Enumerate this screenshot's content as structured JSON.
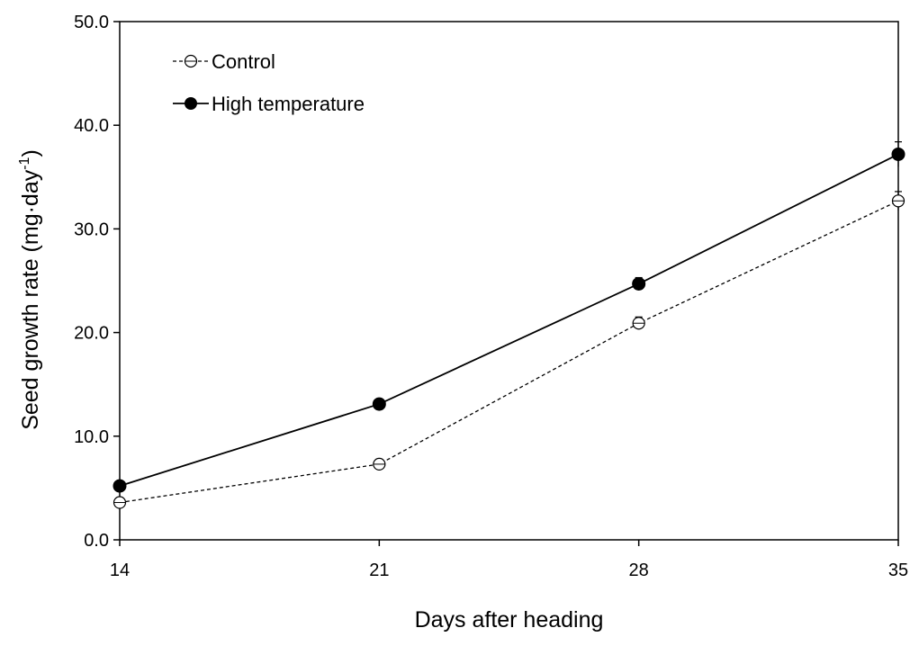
{
  "chart_data": {
    "type": "line",
    "xlabel": "Days after heading",
    "ylabel": {
      "main": "Seed growth rate (mg·day",
      "sup": "-1",
      "close": ")"
    },
    "x": [
      14,
      21,
      28,
      35
    ],
    "x_tick_labels": [
      "14",
      "21",
      "28",
      "35"
    ],
    "xlim": [
      14,
      35
    ],
    "ylim": [
      0,
      50
    ],
    "y_ticks": [
      0,
      10,
      20,
      30,
      40,
      50
    ],
    "y_tick_labels": [
      "0.0",
      "10.0",
      "20.0",
      "30.0",
      "40.0",
      "50.0"
    ],
    "grid": false,
    "legend_position": "top-left",
    "series": [
      {
        "name": "Control",
        "values": [
          3.6,
          7.3,
          20.9,
          32.7
        ],
        "errors": [
          0.3,
          0.3,
          0.6,
          0.9
        ],
        "marker": "open-circle",
        "line_style": "dashed",
        "color": "#000000"
      },
      {
        "name": "High temperature",
        "values": [
          5.2,
          13.1,
          24.7,
          37.2
        ],
        "errors": [
          0.3,
          0.3,
          0.6,
          1.2
        ],
        "marker": "filled-circle",
        "line_style": "solid",
        "color": "#000000"
      }
    ]
  }
}
